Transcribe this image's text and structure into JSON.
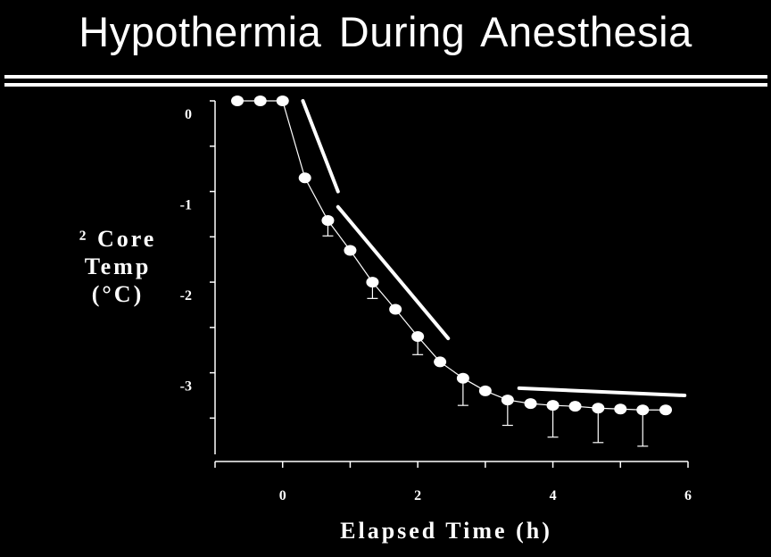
{
  "slide": {
    "title": "Hypothermia During Anesthesia"
  },
  "chart_data": {
    "type": "line",
    "title": "Hypothermia During Anesthesia",
    "ylabel_lines": [
      "² Core",
      "Temp",
      "(°C)"
    ],
    "xlabel": "Elapsed Time (h)",
    "xlim": [
      -1,
      6
    ],
    "ylim": [
      -3.9,
      0
    ],
    "x_ticks": [
      0,
      2,
      4,
      6
    ],
    "y_ticks": [
      0,
      -1,
      -2,
      -3
    ],
    "grid": false,
    "colors": {
      "background": "#000000",
      "foreground": "#ffffff"
    },
    "series": [
      {
        "x": [
          -0.67,
          -0.33,
          0,
          0.33,
          0.67,
          1,
          1.33,
          1.67,
          2,
          2.33,
          2.67,
          3,
          3.33,
          3.67,
          4,
          4.33,
          4.67,
          5,
          5.33,
          5.67
        ],
        "y": [
          0,
          0,
          0,
          -0.85,
          -1.32,
          -1.65,
          -2.0,
          -2.3,
          -2.6,
          -2.88,
          -3.06,
          -3.2,
          -3.3,
          -3.34,
          -3.36,
          -3.37,
          -3.39,
          -3.4,
          -3.41,
          -3.41
        ],
        "error": [
          0,
          0,
          0,
          0,
          0.17,
          0,
          0.18,
          0,
          0.2,
          0,
          0.3,
          0,
          0.28,
          0,
          0.35,
          0,
          0.38,
          0,
          0.4,
          0
        ]
      }
    ],
    "trend_lines": [
      {
        "x": [
          0.3,
          0.82
        ],
        "y": [
          0,
          -1.0
        ]
      },
      {
        "x": [
          0.82,
          2.45
        ],
        "y": [
          -1.17,
          -2.62
        ]
      },
      {
        "x": [
          3.5,
          5.95
        ],
        "y": [
          -3.17,
          -3.25
        ]
      }
    ]
  }
}
